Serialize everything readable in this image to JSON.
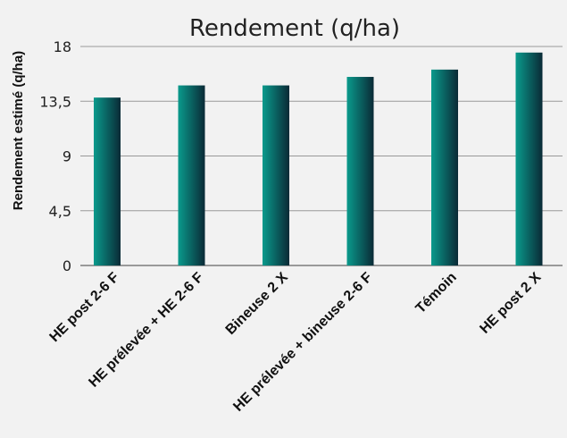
{
  "chart_data": {
    "type": "bar",
    "title": "Rendement (q/ha)",
    "xlabel": "",
    "ylabel": "Rendement estimé (q/ha)",
    "categories": [
      "HE post  2-6 F",
      "HE prélevée + HE 2-6 F",
      "Bineuse  2 X",
      "HE prélevée + bineuse  2-6 F",
      "Témoin",
      "HE post  2 X"
    ],
    "values": [
      13.8,
      14.8,
      14.8,
      15.5,
      16.1,
      17.5
    ],
    "ylim": [
      0,
      18
    ],
    "yticks": [
      0,
      4.5,
      9,
      13.5,
      18
    ],
    "ytick_labels": [
      "0",
      "4,5",
      "9",
      "13,5",
      "18"
    ],
    "grid": true,
    "legend": "none",
    "colors": {
      "bar_light": "#0a9a8c",
      "bar_dark": "#0a2a36",
      "background": "#f2f2f2"
    }
  }
}
